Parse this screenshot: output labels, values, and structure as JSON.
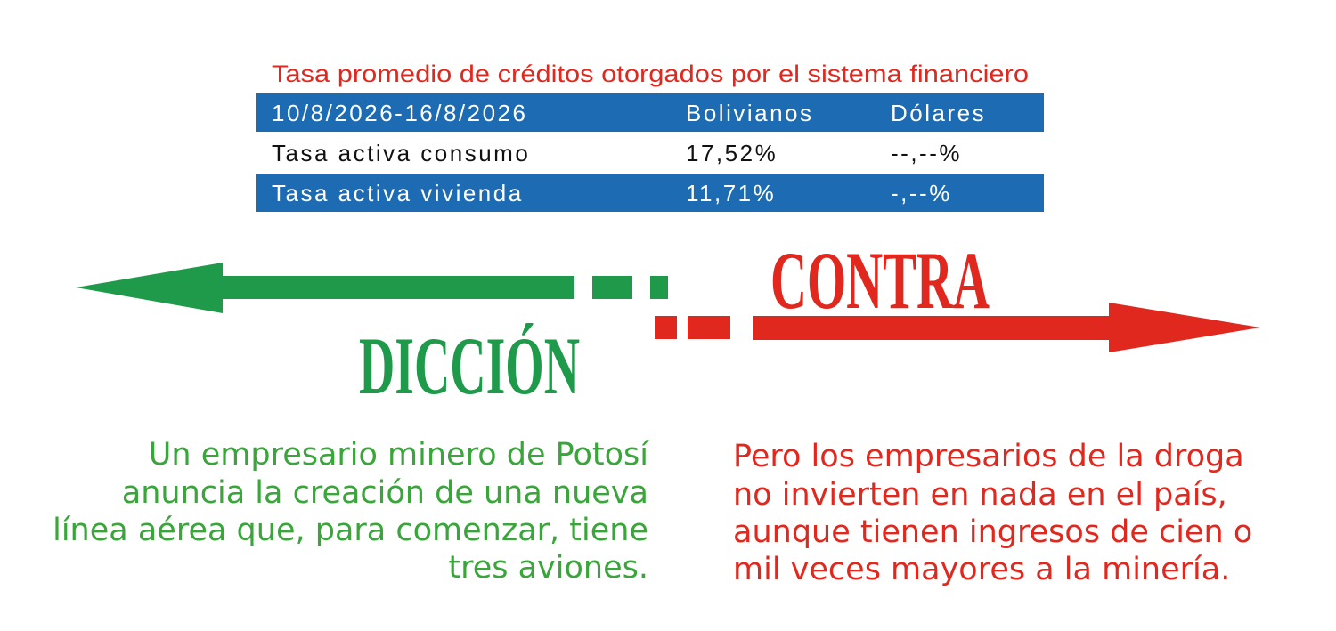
{
  "table": {
    "title": "Tasa promedio de créditos otorgados por el sistema financiero",
    "header": [
      "10/8/2026-16/8/2026",
      "Bolivianos",
      "Dólares"
    ],
    "rows": [
      [
        "Tasa activa consumo",
        "17,52%",
        "--,--%"
      ],
      [
        "Tasa activa vivienda",
        "11,71%",
        "-,--%"
      ]
    ]
  },
  "arrows": {
    "left_label": "DICCIÓN",
    "right_label": "CONTRA"
  },
  "left_text": {
    "lines": [
      "Un empresario minero de Potosí",
      "anuncia la creación de una nueva",
      "línea aérea que, para comenzar, tiene",
      "tres aviones."
    ]
  },
  "right_text": {
    "lines": [
      "Pero los empresarios de la droga",
      "no invierten en nada en el país,",
      "aunque tienen ingresos de cien o",
      "mil veces mayores a la minería."
    ]
  }
}
